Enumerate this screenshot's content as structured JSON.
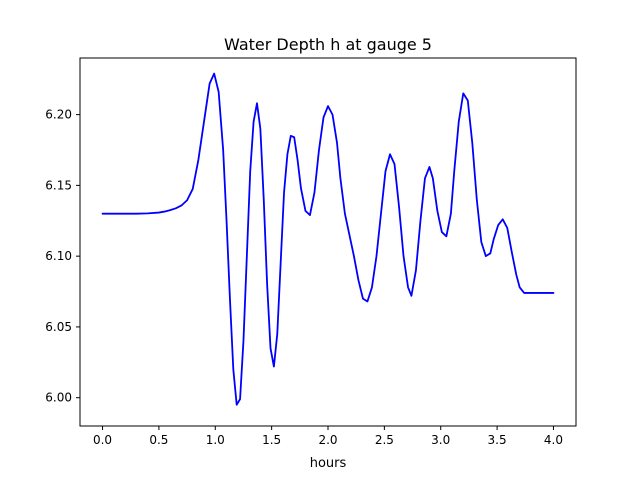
{
  "chart_data": {
    "type": "line",
    "title": "Water Depth h at gauge 5",
    "xlabel": "hours",
    "ylabel": "",
    "xlim": [
      -0.2,
      4.2
    ],
    "ylim": [
      5.98,
      6.24
    ],
    "xticks": [
      0.0,
      0.5,
      1.0,
      1.5,
      2.0,
      2.5,
      3.0,
      3.5,
      4.0
    ],
    "xtick_labels": [
      "0.0",
      "0.5",
      "1.0",
      "1.5",
      "2.0",
      "2.5",
      "3.0",
      "3.5",
      "4.0"
    ],
    "yticks": [
      6.0,
      6.05,
      6.1,
      6.15,
      6.2
    ],
    "ytick_labels": [
      "6.00",
      "6.05",
      "6.10",
      "6.15",
      "6.20"
    ],
    "grid": false,
    "line_color": "#0000ff",
    "series": [
      {
        "x": [
          0.0,
          0.1,
          0.2,
          0.3,
          0.4,
          0.5,
          0.55,
          0.6,
          0.65,
          0.7,
          0.75,
          0.8,
          0.85,
          0.9,
          0.95,
          0.99,
          1.03,
          1.07,
          1.1,
          1.13,
          1.16,
          1.19,
          1.22,
          1.25,
          1.28,
          1.31,
          1.34,
          1.37,
          1.4,
          1.43,
          1.46,
          1.49,
          1.52,
          1.55,
          1.58,
          1.61,
          1.64,
          1.67,
          1.7,
          1.73,
          1.76,
          1.8,
          1.84,
          1.88,
          1.92,
          1.96,
          2.0,
          2.04,
          2.08,
          2.11,
          2.15,
          2.19,
          2.23,
          2.27,
          2.31,
          2.35,
          2.39,
          2.43,
          2.47,
          2.51,
          2.55,
          2.59,
          2.63,
          2.67,
          2.71,
          2.74,
          2.78,
          2.82,
          2.86,
          2.9,
          2.93,
          2.97,
          3.01,
          3.05,
          3.09,
          3.12,
          3.16,
          3.2,
          3.24,
          3.28,
          3.32,
          3.36,
          3.4,
          3.44,
          3.47,
          3.51,
          3.55,
          3.59,
          3.63,
          3.67,
          3.7,
          3.74,
          3.78,
          3.82,
          3.86,
          3.9,
          3.94,
          3.98,
          4.0
        ],
        "y": [
          6.13,
          6.13,
          6.13,
          6.13,
          6.1302,
          6.1308,
          6.1315,
          6.1325,
          6.1338,
          6.1358,
          6.1395,
          6.1475,
          6.168,
          6.195,
          6.222,
          6.229,
          6.216,
          6.175,
          6.125,
          6.07,
          6.02,
          5.995,
          5.999,
          6.04,
          6.1,
          6.16,
          6.195,
          6.208,
          6.19,
          6.14,
          6.08,
          6.035,
          6.022,
          6.045,
          6.095,
          6.145,
          6.172,
          6.185,
          6.184,
          6.168,
          6.148,
          6.132,
          6.129,
          6.145,
          6.175,
          6.198,
          6.206,
          6.2,
          6.18,
          6.155,
          6.13,
          6.115,
          6.1,
          6.083,
          6.07,
          6.068,
          6.078,
          6.1,
          6.13,
          6.16,
          6.172,
          6.165,
          6.135,
          6.1,
          6.078,
          6.072,
          6.09,
          6.125,
          6.155,
          6.163,
          6.155,
          6.132,
          6.117,
          6.114,
          6.13,
          6.16,
          6.195,
          6.215,
          6.21,
          6.18,
          6.14,
          6.11,
          6.1,
          6.102,
          6.112,
          6.122,
          6.126,
          6.12,
          6.103,
          6.087,
          6.078,
          6.074,
          6.074,
          6.074,
          6.074,
          6.074,
          6.074,
          6.074,
          6.074
        ]
      }
    ]
  }
}
